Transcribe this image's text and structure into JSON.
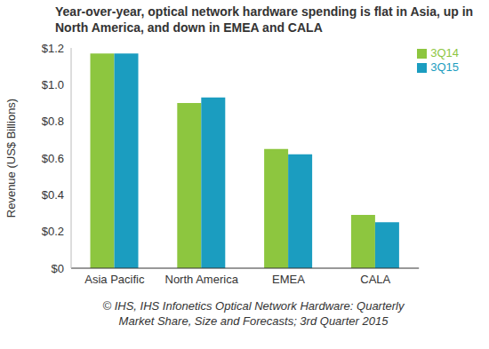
{
  "chart_data": {
    "type": "bar",
    "title": "Year-over-year, optical network hardware spending is flat in Asia, up in North America, and down in EMEA and CALA",
    "y_label": "Revenue (US$ Billions)",
    "source": "© IHS, IHS Infonetics Optical Network Hardware: Quarterly Market Share, Size and Forecasts; 3rd Quarter 2015",
    "categories": [
      "Asia Pacific",
      "North America",
      "EMEA",
      "CALA"
    ],
    "series": [
      {
        "name": "3Q14",
        "color": "#8dc63f",
        "values": [
          1.17,
          0.9,
          0.65,
          0.29
        ]
      },
      {
        "name": "3Q15",
        "color": "#1b9dc0",
        "values": [
          1.17,
          0.93,
          0.62,
          0.25
        ]
      }
    ],
    "ylim": [
      0,
      1.2
    ],
    "yticks": [
      {
        "value": 0,
        "label": "$0"
      },
      {
        "value": 0.2,
        "label": "$0.2"
      },
      {
        "value": 0.4,
        "label": "$0.4"
      },
      {
        "value": 0.6,
        "label": "$0.6"
      },
      {
        "value": 0.8,
        "label": "$0.8"
      },
      {
        "value": 1.0,
        "label": "$1.0"
      },
      {
        "value": 1.2,
        "label": "$1.2"
      }
    ],
    "grid": false,
    "legend": "top-right"
  }
}
